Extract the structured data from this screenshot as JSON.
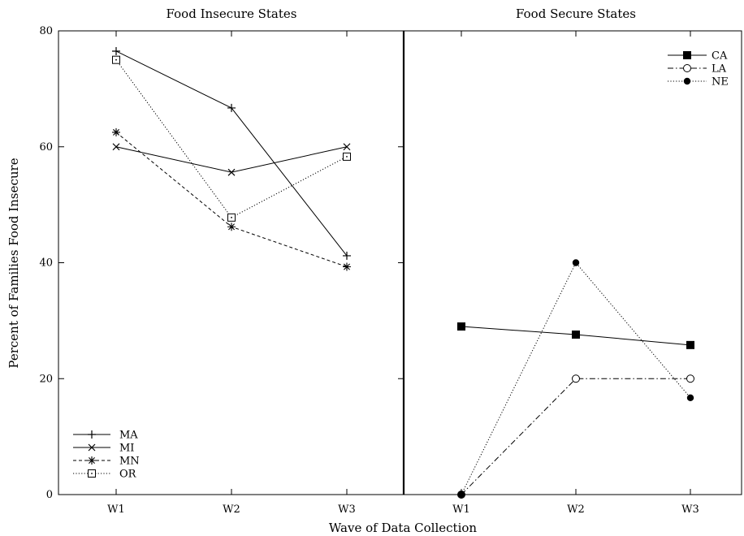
{
  "chart_data": [
    {
      "type": "line",
      "title": "Food Insecure States",
      "xlabel": "Wave of Data Collection",
      "ylabel": "Percent of Families Food Insecure",
      "categories": [
        "W1",
        "W2",
        "W3"
      ],
      "ylim": [
        0,
        80
      ],
      "yticks": [
        0,
        20,
        40,
        60,
        80
      ],
      "grid": false,
      "legend_position": "bottom-left",
      "series": [
        {
          "name": "MA",
          "values": [
            76.5,
            66.7,
            41.2
          ],
          "marker": "plus",
          "dash": "solid"
        },
        {
          "name": "MI",
          "values": [
            60.0,
            55.6,
            60.0
          ],
          "marker": "x",
          "dash": "solid"
        },
        {
          "name": "MN",
          "values": [
            62.5,
            46.2,
            39.3
          ],
          "marker": "asterisk",
          "dash": "dashed"
        },
        {
          "name": "OR",
          "values": [
            75.0,
            47.8,
            58.3
          ],
          "marker": "square-dot",
          "dash": "dotted"
        }
      ]
    },
    {
      "type": "line",
      "title": "Food Secure States",
      "xlabel": "Wave of Data Collection",
      "categories": [
        "W1",
        "W2",
        "W3"
      ],
      "ylim": [
        0,
        80
      ],
      "grid": false,
      "legend_position": "top-right",
      "series": [
        {
          "name": "CA",
          "values": [
            29.0,
            27.6,
            25.8
          ],
          "marker": "filled-square",
          "dash": "solid"
        },
        {
          "name": "LA",
          "values": [
            0,
            20.0,
            20.0
          ],
          "marker": "open-circle",
          "dash": "dashdot"
        },
        {
          "name": "NE",
          "values": [
            0,
            40.0,
            16.7
          ],
          "marker": "filled-circle",
          "dash": "dotted"
        }
      ]
    }
  ]
}
